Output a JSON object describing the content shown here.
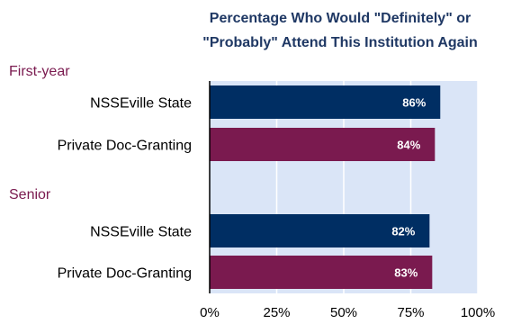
{
  "chart_data": {
    "type": "bar",
    "orientation": "horizontal",
    "title_lines": [
      "Percentage Who Would \"Definitely\" or",
      "\"Probably\" Attend This Institution Again"
    ],
    "groups": [
      {
        "label": "First-year",
        "bars": [
          {
            "category": "NSSEville State",
            "value": 86,
            "label": "86%",
            "color": "#002e63"
          },
          {
            "category": "Private Doc-Granting",
            "value": 84,
            "label": "84%",
            "color": "#7a1a4f"
          }
        ]
      },
      {
        "label": "Senior",
        "bars": [
          {
            "category": "NSSEville State",
            "value": 82,
            "label": "82%",
            "color": "#002e63"
          },
          {
            "category": "Private Doc-Granting",
            "value": 83,
            "label": "83%",
            "color": "#7a1a4f"
          }
        ]
      }
    ],
    "xlim": [
      0,
      100
    ],
    "xticks": [
      0,
      25,
      50,
      75,
      100
    ],
    "xtick_labels": [
      "0%",
      "25%",
      "50%",
      "75%",
      "100%"
    ],
    "plot_background": "#dae5f7",
    "grid": true,
    "legend": false
  }
}
